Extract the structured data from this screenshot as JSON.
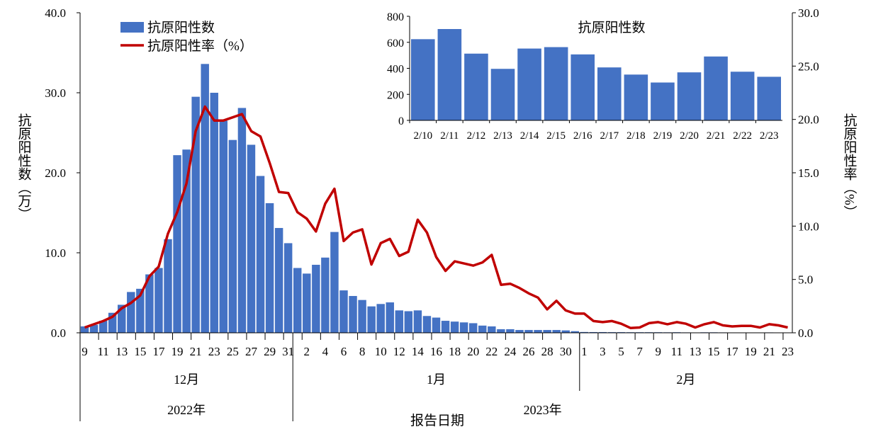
{
  "chart_data": [
    {
      "type": "bar+line",
      "legend": {
        "position": "top-left",
        "bar_label": "抗原阳性数",
        "line_label": "抗原阳性率（%）"
      },
      "ylabel_left": "抗原阳性数（万）",
      "ylabel_right": "抗原阳性率（%）",
      "xlabel": "报告日期",
      "ylim_left": [
        0,
        40
      ],
      "yticks_left": [
        "0.0",
        "10.0",
        "20.0",
        "30.0",
        "40.0"
      ],
      "ylim_right": [
        0,
        30
      ],
      "yticks_right": [
        "0.0",
        "5.0",
        "10.0",
        "15.0",
        "20.0",
        "25.0",
        "30.0"
      ],
      "grid": false,
      "colors": {
        "bar": "#4472C4",
        "line": "#C00000"
      },
      "months": [
        {
          "label": "12月",
          "year": "2022年",
          "days": 23,
          "start_day": 9
        },
        {
          "label": "1月",
          "year": "2023年",
          "days": 31,
          "start_day": 1
        },
        {
          "label": "2月",
          "year": "2023年",
          "days": 23,
          "start_day": 1
        }
      ],
      "years": [
        "2022年",
        "2023年"
      ],
      "xtick_labels": [
        "9",
        "11",
        "13",
        "15",
        "17",
        "19",
        "21",
        "23",
        "25",
        "27",
        "29",
        "31",
        "2",
        "4",
        "6",
        "8",
        "10",
        "12",
        "14",
        "16",
        "18",
        "20",
        "22",
        "24",
        "26",
        "28",
        "30",
        "1",
        "3",
        "5",
        "7",
        "9",
        "11",
        "13",
        "15",
        "17",
        "19",
        "21",
        "23"
      ],
      "series": [
        {
          "name": "抗原阳性数",
          "axis": "left",
          "type": "bar",
          "values": [
            0.8,
            1.0,
            1.5,
            2.5,
            3.5,
            5.1,
            5.5,
            7.3,
            8.1,
            11.7,
            22.2,
            22.9,
            29.5,
            33.6,
            30.0,
            26.5,
            24.1,
            28.1,
            23.5,
            19.6,
            16.2,
            13.1,
            11.2,
            8.1,
            7.4,
            8.5,
            9.4,
            12.6,
            5.3,
            4.6,
            4.1,
            3.3,
            3.6,
            3.8,
            2.8,
            2.7,
            2.8,
            2.1,
            1.9,
            1.5,
            1.4,
            1.3,
            1.2,
            0.9,
            0.8,
            0.45,
            0.45,
            0.35,
            0.35,
            0.35,
            0.35,
            0.35,
            0.3,
            0.2,
            0.1,
            0.09,
            0.09,
            0.08,
            0.08,
            0.07,
            0.07,
            0.07,
            0.07,
            0.06,
            0.07,
            0.05,
            0.04,
            0.06,
            0.06,
            0.05,
            0.04,
            0.04,
            0.03,
            0.04,
            0.05,
            0.04,
            0.03
          ]
        },
        {
          "name": "抗原阳性率（%）",
          "axis": "right",
          "type": "line",
          "values": [
            0.5,
            0.8,
            1.1,
            1.5,
            2.3,
            2.8,
            3.5,
            5.3,
            6.2,
            9.3,
            11.3,
            14.0,
            18.9,
            21.2,
            19.9,
            19.9,
            20.2,
            20.5,
            18.9,
            18.4,
            15.9,
            13.2,
            13.1,
            11.3,
            10.7,
            9.5,
            12.1,
            13.5,
            8.6,
            9.4,
            9.7,
            6.4,
            8.4,
            8.8,
            7.2,
            7.6,
            10.6,
            9.4,
            7.1,
            5.8,
            6.7,
            6.5,
            6.3,
            6.6,
            7.3,
            4.5,
            4.6,
            4.2,
            3.7,
            3.3,
            2.2,
            3.0,
            2.1,
            1.8,
            1.8,
            1.1,
            1.0,
            1.1,
            0.85,
            0.45,
            0.5,
            0.9,
            1.0,
            0.8,
            1.0,
            0.85,
            0.5,
            0.8,
            1.0,
            0.7,
            0.6,
            0.65,
            0.65,
            0.5,
            0.8,
            0.7,
            0.5
          ]
        }
      ]
    },
    {
      "type": "bar",
      "title": "抗原阳性数",
      "categories": [
        "2/10",
        "2/11",
        "2/12",
        "2/13",
        "2/14",
        "2/15",
        "2/16",
        "2/17",
        "2/18",
        "2/19",
        "2/20",
        "2/21",
        "2/22",
        "2/23"
      ],
      "values": [
        624,
        702,
        513,
        396,
        552,
        563,
        507,
        407,
        352,
        291,
        369,
        491,
        374,
        335
      ],
      "ylim": [
        0,
        800
      ],
      "yticks": [
        "0",
        "200",
        "400",
        "600",
        "800"
      ],
      "color": "#4472C4"
    }
  ]
}
